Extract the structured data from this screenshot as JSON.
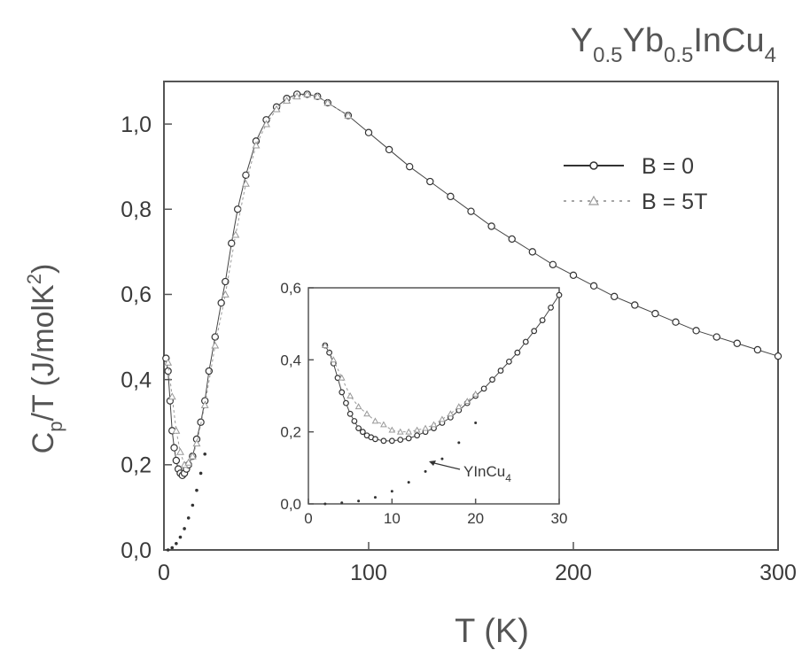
{
  "chart_data": [
    {
      "type": "scatter",
      "title": {
        "y": "Y",
        "y_sub": "0.5",
        "yb": "Yb",
        "yb_sub": "0.5",
        "rest": "InCu",
        "rest_sub": "4"
      },
      "ylabel": {
        "main": "C",
        "sub": "p",
        "mid": "/T (J/molK",
        "sup": "2",
        "end": ")"
      },
      "xlabel": "T (K)",
      "xlim": [
        0,
        300
      ],
      "ylim": [
        0,
        1.1
      ],
      "x_ticks": [
        {
          "v": 0,
          "label": "0"
        },
        {
          "v": 100,
          "label": "100"
        },
        {
          "v": 200,
          "label": "200"
        },
        {
          "v": 300,
          "label": "300"
        }
      ],
      "y_ticks": [
        {
          "v": 0,
          "label": "0,0"
        },
        {
          "v": 0.2,
          "label": "0,2"
        },
        {
          "v": 0.4,
          "label": "0,4"
        },
        {
          "v": 0.6,
          "label": "0,6"
        },
        {
          "v": 0.8,
          "label": "0,8"
        },
        {
          "v": 1.0,
          "label": "1,0"
        }
      ],
      "legend": {
        "position": "top-right",
        "items": [
          "B = 0",
          "B = 5T"
        ]
      },
      "series": [
        {
          "name": "B = 0",
          "marker": "open-circle",
          "x": [
            1,
            2,
            3,
            4,
            5,
            6,
            7,
            8,
            9,
            10,
            11,
            12,
            14,
            16,
            18,
            20,
            22,
            25,
            28,
            30,
            33,
            36,
            40,
            45,
            50,
            55,
            60,
            65,
            70,
            75,
            80,
            90,
            100,
            110,
            120,
            130,
            140,
            150,
            160,
            170,
            180,
            190,
            200,
            210,
            220,
            230,
            240,
            250,
            260,
            270,
            280,
            290,
            300
          ],
          "y": [
            0.45,
            0.42,
            0.35,
            0.28,
            0.24,
            0.21,
            0.19,
            0.18,
            0.175,
            0.18,
            0.19,
            0.2,
            0.22,
            0.26,
            0.3,
            0.35,
            0.42,
            0.5,
            0.58,
            0.63,
            0.72,
            0.8,
            0.88,
            0.96,
            1.01,
            1.04,
            1.06,
            1.07,
            1.07,
            1.065,
            1.05,
            1.02,
            0.98,
            0.94,
            0.9,
            0.865,
            0.83,
            0.795,
            0.76,
            0.73,
            0.7,
            0.67,
            0.645,
            0.62,
            0.595,
            0.575,
            0.555,
            0.535,
            0.515,
            0.5,
            0.485,
            0.47,
            0.455
          ]
        },
        {
          "name": "B = 5T",
          "marker": "dashed-dotted",
          "x": [
            2,
            4,
            6,
            8,
            10,
            12,
            14,
            16,
            20,
            25,
            30,
            35,
            40,
            45,
            50,
            55,
            60,
            65,
            70,
            75,
            80,
            90
          ],
          "y": [
            0.44,
            0.36,
            0.28,
            0.23,
            0.2,
            0.205,
            0.22,
            0.25,
            0.34,
            0.48,
            0.6,
            0.74,
            0.86,
            0.95,
            1.0,
            1.035,
            1.055,
            1.065,
            1.07,
            1.065,
            1.05,
            1.02
          ]
        },
        {
          "name": "YInCu4",
          "marker": "dot",
          "x": [
            2,
            4,
            6,
            8,
            10,
            12,
            14,
            16,
            18,
            20
          ],
          "y": [
            0.0,
            0.005,
            0.015,
            0.03,
            0.05,
            0.075,
            0.105,
            0.14,
            0.18,
            0.225
          ]
        }
      ]
    },
    {
      "type": "scatter",
      "role": "inset",
      "xlim": [
        0,
        30
      ],
      "ylim": [
        0,
        0.6
      ],
      "x_ticks": [
        {
          "v": 0,
          "label": "0"
        },
        {
          "v": 10,
          "label": "10"
        },
        {
          "v": 20,
          "label": "20"
        },
        {
          "v": 30,
          "label": "30"
        }
      ],
      "y_ticks": [
        {
          "v": 0,
          "label": "0,0"
        },
        {
          "v": 0.2,
          "label": "0,2"
        },
        {
          "v": 0.4,
          "label": "0,4"
        },
        {
          "v": 0.6,
          "label": "0,6"
        }
      ],
      "annotation": {
        "text": "YInCu",
        "sub": "4",
        "at_x": 14,
        "at_y": 0.11
      },
      "series": [
        {
          "name": "B = 0",
          "marker": "open-circle",
          "x": [
            2,
            2.5,
            3,
            3.5,
            4,
            4.5,
            5,
            5.5,
            6,
            6.5,
            7,
            7.5,
            8,
            9,
            10,
            11,
            12,
            13,
            14,
            15,
            16,
            17,
            18,
            19,
            20,
            21,
            22,
            23,
            24,
            25,
            26,
            27,
            28,
            29,
            30
          ],
          "y": [
            0.44,
            0.42,
            0.39,
            0.35,
            0.31,
            0.28,
            0.25,
            0.23,
            0.21,
            0.2,
            0.19,
            0.185,
            0.18,
            0.175,
            0.175,
            0.178,
            0.182,
            0.19,
            0.2,
            0.21,
            0.225,
            0.24,
            0.26,
            0.28,
            0.3,
            0.32,
            0.345,
            0.37,
            0.395,
            0.42,
            0.45,
            0.48,
            0.51,
            0.545,
            0.58
          ]
        },
        {
          "name": "B = 5T",
          "marker": "open-triangle",
          "x": [
            2,
            3,
            4,
            5,
            6,
            7,
            8,
            9,
            10,
            11,
            12,
            13,
            14,
            15,
            16,
            17,
            18,
            19,
            20
          ],
          "y": [
            0.44,
            0.4,
            0.35,
            0.3,
            0.27,
            0.25,
            0.23,
            0.22,
            0.205,
            0.2,
            0.2,
            0.205,
            0.21,
            0.22,
            0.235,
            0.25,
            0.27,
            0.285,
            0.305
          ]
        },
        {
          "name": "YInCu4",
          "marker": "dot",
          "x": [
            2,
            4,
            6,
            8,
            10,
            12,
            14,
            16,
            18,
            20
          ],
          "y": [
            0.0,
            0.003,
            0.008,
            0.018,
            0.035,
            0.06,
            0.09,
            0.125,
            0.17,
            0.225
          ]
        }
      ]
    }
  ]
}
